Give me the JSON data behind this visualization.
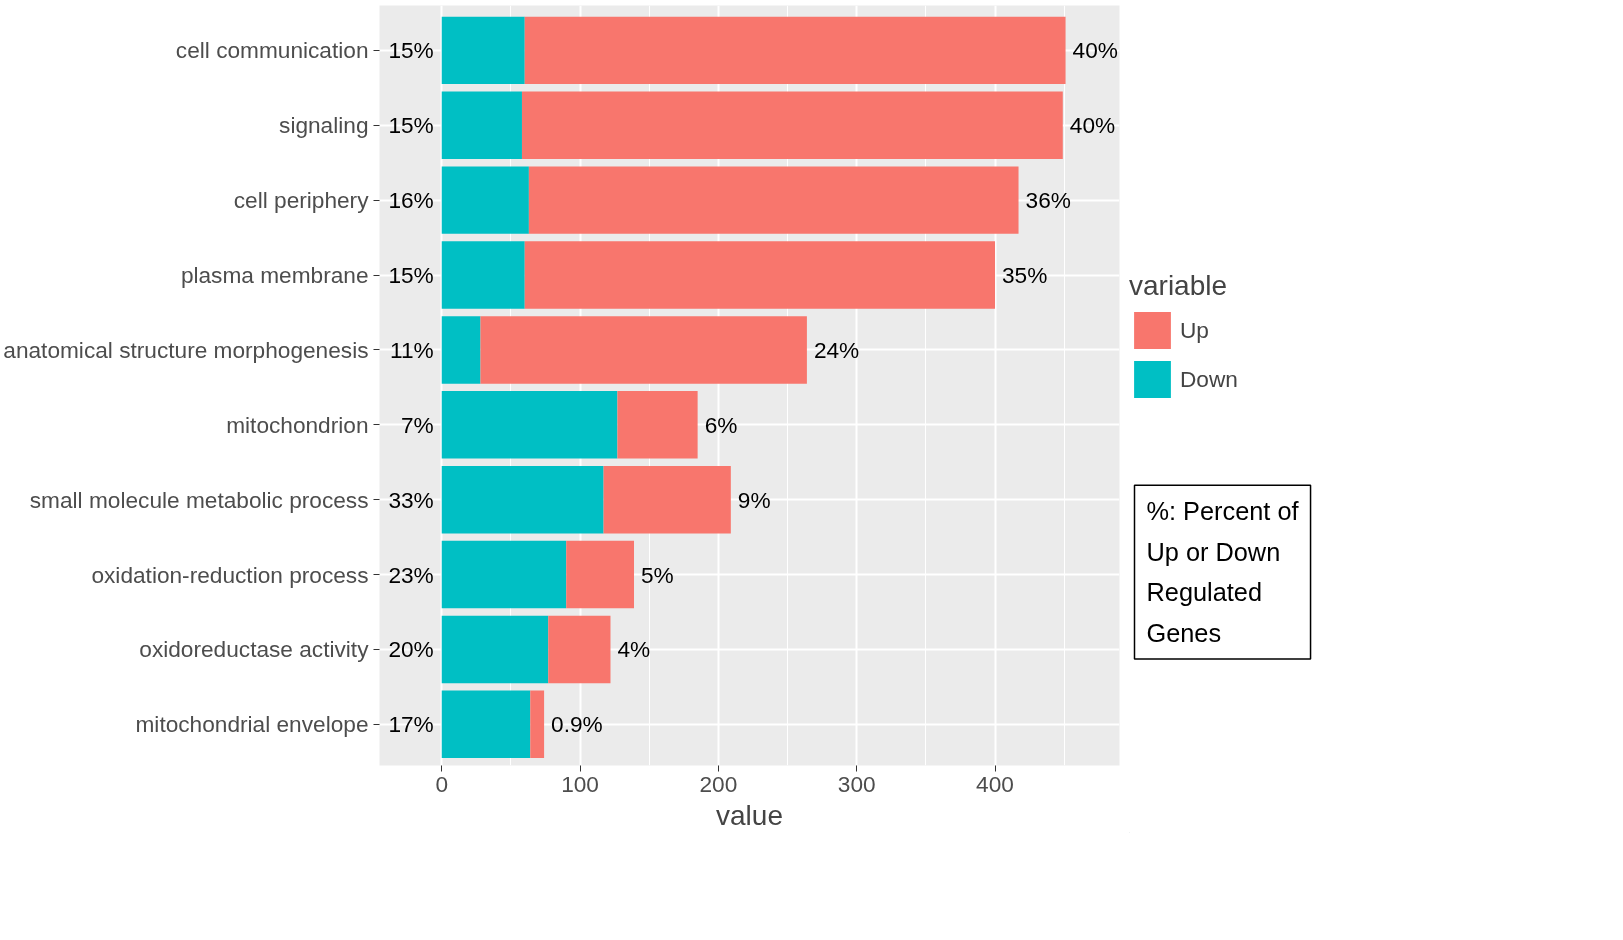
{
  "chart_data": {
    "type": "bar",
    "orientation": "horizontal",
    "stacked": true,
    "xlabel": "value",
    "legend_title": "variable",
    "legend": "right",
    "grid": true,
    "categories": [
      "cell communication",
      "signaling",
      "cell periphery",
      "plasma membrane",
      "anatomical structure morphogenesis",
      "mitochondrion",
      "small molecule metabolic process",
      "oxidation-reduction process",
      "oxidoreductase activity",
      "mitochondrial envelope"
    ],
    "series": [
      {
        "name": "Down",
        "color": "#00bfc4",
        "values": [
          60,
          58,
          63,
          60,
          28,
          127,
          117,
          90,
          77,
          64
        ]
      },
      {
        "name": "Up",
        "color": "#f8766d",
        "values": [
          391,
          391,
          354,
          340,
          236,
          58,
          92,
          49,
          45,
          10
        ]
      }
    ],
    "xlim": [
      -45,
      490
    ],
    "xticks": [
      0,
      100,
      200,
      300,
      400
    ],
    "annotations": [
      {
        "text": "15%",
        "x": 0,
        "y": "cell communication"
      },
      {
        "text": "15%",
        "x": 0,
        "y": "signaling"
      },
      {
        "text": "16%",
        "x": 0,
        "y": "cell periphery"
      },
      {
        "text": "15%",
        "x": 0,
        "y": "plasma membrane"
      },
      {
        "text": "11%",
        "x": 0,
        "y": "anatomical structure morphogenesis"
      },
      {
        "text": "7%",
        "x": 0,
        "y": "mitochondrion"
      },
      {
        "text": "33%",
        "x": 0,
        "y": "small molecule metabolic process"
      },
      {
        "text": "23%",
        "x": 0,
        "y": "oxidation-reduction process"
      },
      {
        "text": "20%",
        "x": 0,
        "y": "oxidoreductase activity"
      },
      {
        "text": "17%",
        "x": 0,
        "y": "mitochondrial envelope"
      },
      {
        "text": "40%",
        "x": 451,
        "y": "cell communication"
      },
      {
        "text": "40%",
        "x": 449,
        "y": "signaling"
      },
      {
        "text": "36%",
        "x": 417,
        "y": "cell periphery"
      },
      {
        "text": "35%",
        "x": 400,
        "y": "plasma membrane"
      },
      {
        "text": "24%",
        "x": 264,
        "y": "anatomical structure morphogenesis"
      },
      {
        "text": "6%",
        "x": 185,
        "y": "mitochondrion"
      },
      {
        "text": "9%",
        "x": 209,
        "y": "small molecule metabolic process"
      },
      {
        "text": "5%",
        "x": 139,
        "y": "oxidation-reduction process"
      },
      {
        "text": "4%",
        "x": 122,
        "y": "oxidoreductase activity"
      },
      {
        "text": "0.9%",
        "x": 74,
        "y": "mitochondrial envelope"
      },
      "%: Percent of Up or Down Regulated Genes"
    ]
  }
}
